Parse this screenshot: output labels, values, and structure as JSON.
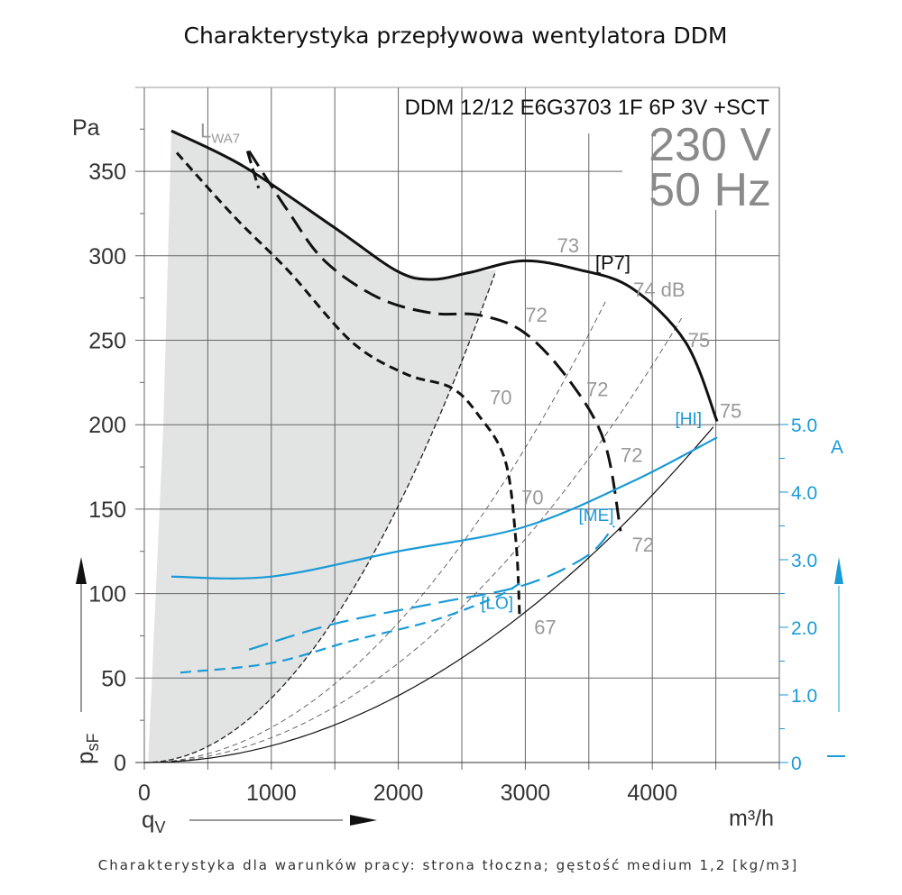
{
  "chart_data": {
    "type": "line",
    "title": "Charakterystyka przepływowa wentylatora DDM",
    "subtitle": "DDM 12/12 E6G3703 1F 6P 3V +SCT",
    "voltage": "230 V",
    "frequency": "50 Hz",
    "footer": "Charakterystyka dla warunków pracy: strona tłoczna; gęstość medium 1,2 [kg/m3]",
    "xlabel": "qV",
    "xunit": "m³/h",
    "ylabel": "psF",
    "yunit": "Pa",
    "y2label": "A",
    "xlim": [
      0,
      5000
    ],
    "ylim": [
      0,
      400
    ],
    "y2lim": [
      0,
      5.0
    ],
    "grid": true,
    "x_ticks": [
      0,
      1000,
      2000,
      3000,
      4000
    ],
    "y_ticks": [
      0,
      50,
      100,
      150,
      200,
      250,
      300,
      350
    ],
    "y2_ticks": [
      "0",
      "1.0",
      "2.0",
      "3.0",
      "4.0",
      "5.0"
    ],
    "y2_tick_values": [
      0,
      1,
      2,
      3,
      4,
      5
    ],
    "colors": {
      "pressure": "#111111",
      "current": "#1a9ad6",
      "noise_label": "#999999",
      "forbidden_zone": "#e2e3e3"
    },
    "series": [
      {
        "name": "[HI]",
        "kind": "pressure",
        "style": "solid",
        "x": [
          213,
          781,
          1491,
          1989,
          2259,
          2557,
          2983,
          3409,
          3835,
          4261,
          4510
        ],
        "y": [
          374,
          353,
          317,
          291,
          286,
          290,
          297,
          292,
          281,
          249,
          202
        ]
      },
      {
        "name": "[ME]",
        "kind": "pressure",
        "style": "dashed-long",
        "x": [
          824,
          1136,
          1420,
          1847,
          2273,
          2628,
          2983,
          3338,
          3622,
          3750
        ],
        "y": [
          362,
          326,
          297,
          275,
          266,
          265,
          255,
          227,
          190,
          137
        ]
      },
      {
        "name": "[LO]",
        "kind": "pressure",
        "style": "dashed",
        "x": [
          256,
          710,
          1136,
          1634,
          2060,
          2415,
          2628,
          2841,
          2926,
          2955
        ],
        "y": [
          361,
          323,
          291,
          249,
          230,
          222,
          206,
          179,
          131,
          86
        ]
      },
      {
        "name": "I [HI]",
        "kind": "current",
        "style": "solid",
        "x": [
          213,
          994,
          1989,
          2983,
          3835,
          4510
        ],
        "y": [
          2.75,
          2.75,
          3.12,
          3.48,
          4.15,
          4.81
        ]
      },
      {
        "name": "I [ME]",
        "kind": "current",
        "style": "dashed-long",
        "x": [
          824,
          1491,
          2273,
          2983,
          3480,
          3700
        ],
        "y": [
          1.67,
          2.05,
          2.35,
          2.62,
          3.05,
          3.5
        ]
      },
      {
        "name": "I [LO]",
        "kind": "current",
        "style": "dashed",
        "x": [
          284,
          994,
          1634,
          2273,
          2770,
          2955
        ],
        "y": [
          1.33,
          1.47,
          1.8,
          2.1,
          2.45,
          2.65
        ]
      }
    ],
    "system_curves": [
      {
        "name": "limit",
        "style": "dashed-dark",
        "k": 3.8e-05,
        "x_end": 2770
      },
      {
        "name": "s1",
        "style": "dashed-thin",
        "k": 2.07e-05,
        "x_end": 3650
      },
      {
        "name": "s2",
        "style": "dashed-thin",
        "k": 1.47e-05,
        "x_end": 4250
      },
      {
        "name": "s3",
        "style": "solid-thin",
        "k": 9.9e-06,
        "x_end": 4510
      }
    ],
    "annotations": [
      {
        "text": "73",
        "x": 3250,
        "y": 302
      },
      {
        "text": "[P7]",
        "x": 3550,
        "y": 292,
        "kind": "p7"
      },
      {
        "text": "74 dB",
        "x": 3850,
        "y": 276
      },
      {
        "text": "72",
        "x": 3000,
        "y": 261
      },
      {
        "text": "75",
        "x": 4280,
        "y": 246
      },
      {
        "text": "70",
        "x": 2720,
        "y": 212
      },
      {
        "text": "72",
        "x": 3480,
        "y": 217
      },
      {
        "text": "75",
        "x": 4530,
        "y": 204
      },
      {
        "text": "[HI]",
        "x": 4180,
        "y": 200,
        "kind": "mode"
      },
      {
        "text": "72",
        "x": 3750,
        "y": 178
      },
      {
        "text": "70",
        "x": 2970,
        "y": 153
      },
      {
        "text": "[ME]",
        "x": 3420,
        "y": 143,
        "kind": "mode"
      },
      {
        "text": "72",
        "x": 3840,
        "y": 125
      },
      {
        "text": "[LO]",
        "x": 2650,
        "y": 91,
        "kind": "mode"
      },
      {
        "text": "67",
        "x": 3070,
        "y": 76
      },
      {
        "text": "LWA7",
        "x": 450,
        "y": 372,
        "kind": "lwa"
      }
    ]
  }
}
